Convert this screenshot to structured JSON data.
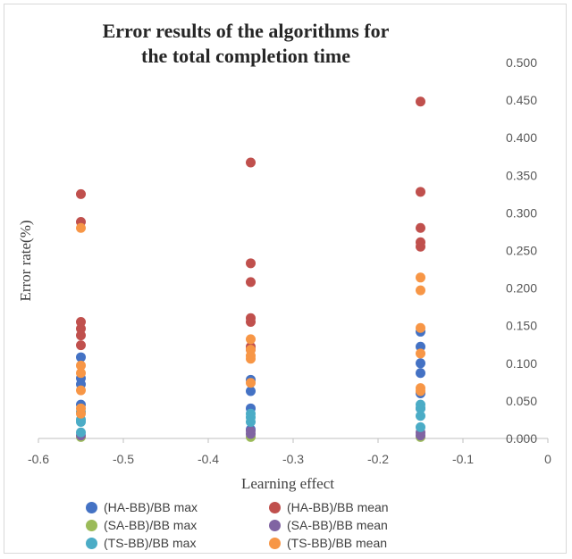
{
  "chart_data": {
    "type": "scatter",
    "title_lines": [
      "Error results of the algorithms for",
      "the total  completion time"
    ],
    "xlabel": "Learning effect",
    "ylabel": "Error rate(%)",
    "xlim": [
      -0.6,
      0
    ],
    "ylim": [
      0,
      0.5
    ],
    "x_ticks": [
      "-0.6",
      "-0.5",
      "-0.4",
      "-0.3",
      "-0.2",
      "-0.1",
      "0"
    ],
    "y_ticks": [
      "0.000",
      "0.050",
      "0.100",
      "0.150",
      "0.200",
      "0.250",
      "0.300",
      "0.350",
      "0.400",
      "0.450",
      "0.500"
    ],
    "legend_position": "bottom",
    "series": [
      {
        "name": "(HA-BB)/BB max",
        "color": "#4472c4",
        "points": [
          [
            -0.55,
            0.108
          ],
          [
            -0.55,
            0.08
          ],
          [
            -0.55,
            0.072
          ],
          [
            -0.55,
            0.045
          ],
          [
            -0.55,
            0.035
          ],
          [
            -0.35,
            0.078
          ],
          [
            -0.35,
            0.063
          ],
          [
            -0.35,
            0.04
          ],
          [
            -0.35,
            0.012
          ],
          [
            -0.15,
            0.142
          ],
          [
            -0.15,
            0.122
          ],
          [
            -0.15,
            0.1
          ],
          [
            -0.15,
            0.087
          ],
          [
            -0.15,
            0.06
          ],
          [
            -0.15,
            0.04
          ]
        ]
      },
      {
        "name": "(HA-BB)/BB mean",
        "color": "#c0504d",
        "points": [
          [
            -0.55,
            0.325
          ],
          [
            -0.55,
            0.288
          ],
          [
            -0.55,
            0.155
          ],
          [
            -0.55,
            0.146
          ],
          [
            -0.55,
            0.137
          ],
          [
            -0.55,
            0.124
          ],
          [
            -0.35,
            0.367
          ],
          [
            -0.35,
            0.233
          ],
          [
            -0.35,
            0.208
          ],
          [
            -0.35,
            0.16
          ],
          [
            -0.35,
            0.155
          ],
          [
            -0.35,
            0.122
          ],
          [
            -0.35,
            0.118
          ],
          [
            -0.15,
            0.448
          ],
          [
            -0.15,
            0.328
          ],
          [
            -0.15,
            0.28
          ],
          [
            -0.15,
            0.261
          ],
          [
            -0.15,
            0.255
          ]
        ]
      },
      {
        "name": "(SA-BB)/BB max",
        "color": "#9bbb59",
        "points": [
          [
            -0.55,
            0.002
          ],
          [
            -0.35,
            0.002
          ],
          [
            -0.15,
            0.002
          ]
        ]
      },
      {
        "name": "(SA-BB)/BB mean",
        "color": "#8064a2",
        "points": [
          [
            -0.55,
            0.004
          ],
          [
            -0.35,
            0.01
          ],
          [
            -0.35,
            0.006
          ],
          [
            -0.15,
            0.008
          ],
          [
            -0.15,
            0.004
          ]
        ]
      },
      {
        "name": "(TS-BB)/BB max",
        "color": "#4bacc6",
        "points": [
          [
            -0.55,
            0.035
          ],
          [
            -0.55,
            0.025
          ],
          [
            -0.55,
            0.022
          ],
          [
            -0.55,
            0.008
          ],
          [
            -0.35,
            0.033
          ],
          [
            -0.35,
            0.028
          ],
          [
            -0.35,
            0.022
          ],
          [
            -0.15,
            0.045
          ],
          [
            -0.15,
            0.04
          ],
          [
            -0.15,
            0.03
          ],
          [
            -0.15,
            0.015
          ]
        ]
      },
      {
        "name": "(TS-BB)/BB mean",
        "color": "#f79646",
        "points": [
          [
            -0.55,
            0.28
          ],
          [
            -0.55,
            0.097
          ],
          [
            -0.55,
            0.087
          ],
          [
            -0.55,
            0.064
          ],
          [
            -0.55,
            0.04
          ],
          [
            -0.55,
            0.033
          ],
          [
            -0.35,
            0.132
          ],
          [
            -0.35,
            0.118
          ],
          [
            -0.35,
            0.11
          ],
          [
            -0.35,
            0.106
          ],
          [
            -0.35,
            0.074
          ],
          [
            -0.15,
            0.214
          ],
          [
            -0.15,
            0.197
          ],
          [
            -0.15,
            0.147
          ],
          [
            -0.15,
            0.113
          ],
          [
            -0.15,
            0.067
          ],
          [
            -0.15,
            0.063
          ]
        ]
      }
    ]
  }
}
